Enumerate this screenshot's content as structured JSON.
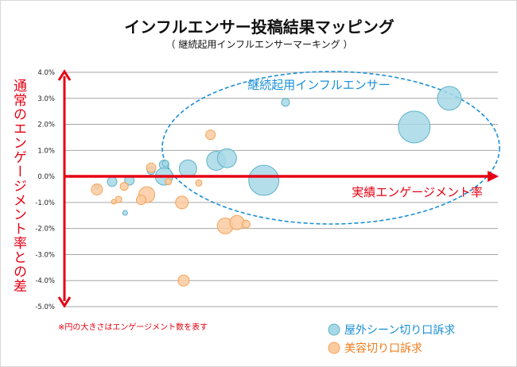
{
  "chart_data": {
    "type": "bubble",
    "title": "インフルエンサー投稿結果マッピング",
    "subtitle": "（ 継続起用インフルエンサーマーキング ）",
    "xlabel": "実績エンゲージメント率",
    "ylabel": "通常のエンゲージメント率との差",
    "ylim": [
      -5.0,
      4.0
    ],
    "yticks": [
      "4.0%",
      "3.0%",
      "2.0%",
      "1.0%",
      "0.0%",
      "-1.0%",
      "-2.0%",
      "-3.0%",
      "-4.0%",
      "-5.0%"
    ],
    "xlim": [
      0,
      100
    ],
    "grid": true,
    "legend_position": "bottom-right",
    "note": "※円の大きさはエンゲージメント数を表す",
    "annotation": "継続起用インフルエンサー",
    "series": [
      {
        "name": "屋外シーン切り口訴求",
        "color": "#a6d8e6",
        "stroke": "#5fb3c9",
        "points": [
          {
            "x": 11,
            "y": -0.2,
            "size": 6
          },
          {
            "x": 15,
            "y": -0.15,
            "size": 6
          },
          {
            "x": 7.5,
            "y": -0.4,
            "size": 3
          },
          {
            "x": 14,
            "y": -1.4,
            "size": 3
          },
          {
            "x": 20,
            "y": 0.23,
            "size": 5
          },
          {
            "x": 23,
            "y": 0.45,
            "size": 6
          },
          {
            "x": 23.3,
            "y": 0.5,
            "size": 4
          },
          {
            "x": 23,
            "y": 0.0,
            "size": 11
          },
          {
            "x": 28.5,
            "y": 0.3,
            "size": 11
          },
          {
            "x": 35,
            "y": 0.6,
            "size": 12
          },
          {
            "x": 37.5,
            "y": 0.7,
            "size": 12
          },
          {
            "x": 46,
            "y": -0.15,
            "size": 19
          },
          {
            "x": 51,
            "y": 2.85,
            "size": 5
          },
          {
            "x": 80.7,
            "y": 1.9,
            "size": 20
          },
          {
            "x": 88.8,
            "y": 3.0,
            "size": 15
          }
        ]
      },
      {
        "name": "美容切り口訴求",
        "color": "#fbcba0",
        "stroke": "#f4a25a",
        "points": [
          {
            "x": 33.7,
            "y": 1.6,
            "size": 6
          },
          {
            "x": 20,
            "y": 0.33,
            "size": 6
          },
          {
            "x": 24,
            "y": -0.2,
            "size": 4
          },
          {
            "x": 31,
            "y": -0.25,
            "size": 4
          },
          {
            "x": 7.5,
            "y": -0.5,
            "size": 7
          },
          {
            "x": 13.8,
            "y": -0.38,
            "size": 5
          },
          {
            "x": 19,
            "y": -0.7,
            "size": 10
          },
          {
            "x": 17.7,
            "y": -0.9,
            "size": 6
          },
          {
            "x": 12.5,
            "y": -0.88,
            "size": 4
          },
          {
            "x": 11.4,
            "y": -0.97,
            "size": 3
          },
          {
            "x": 27.1,
            "y": -1.0,
            "size": 8
          },
          {
            "x": 37.1,
            "y": -1.9,
            "size": 10
          },
          {
            "x": 39.8,
            "y": -1.77,
            "size": 9
          },
          {
            "x": 41.9,
            "y": -1.83,
            "size": 5
          },
          {
            "x": 27.5,
            "y": -4.0,
            "size": 7
          }
        ]
      }
    ]
  },
  "colors": {
    "axis": "#e60012",
    "annotation": "#1a8fd6",
    "legend_blue": "#1a8fd6",
    "legend_orange": "#f07c1e"
  }
}
